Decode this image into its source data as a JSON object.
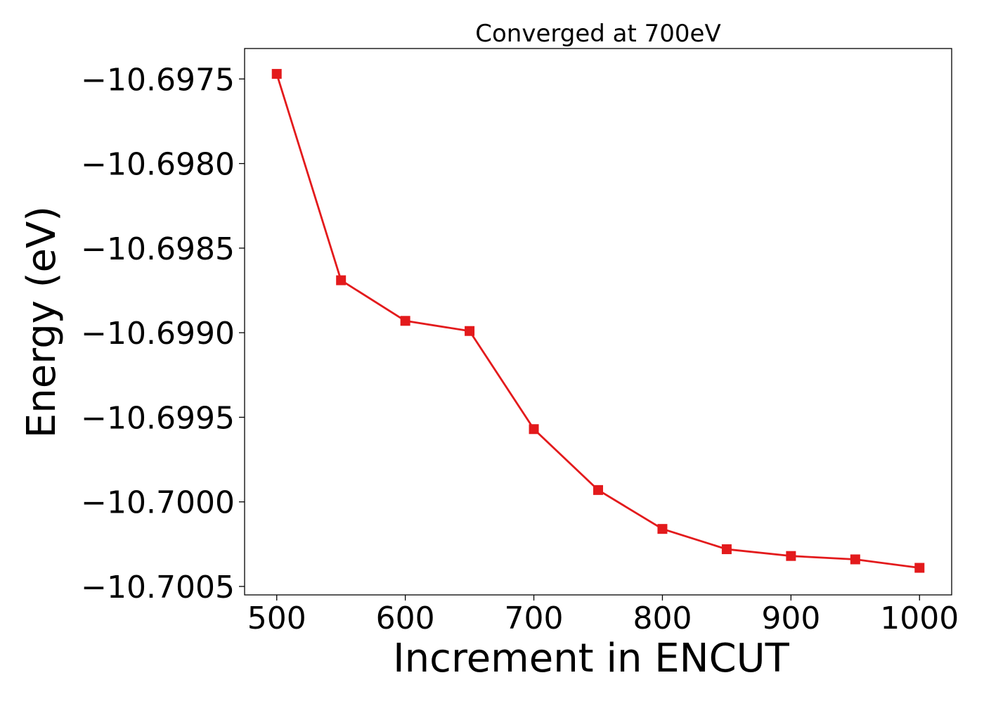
{
  "chart_data": {
    "type": "line",
    "title": "Converged at 700eV",
    "xlabel": "Increment in ENCUT",
    "ylabel": "Energy (eV)",
    "x": [
      500,
      550,
      600,
      650,
      700,
      750,
      800,
      850,
      900,
      950,
      1000
    ],
    "series": [
      {
        "values": [
          -10.69747,
          -10.69869,
          -10.69893,
          -10.69899,
          -10.69957,
          -10.69993,
          -10.70016,
          -10.70028,
          -10.70032,
          -10.70034,
          -10.70039
        ],
        "color": "#e31a1c",
        "marker": "square"
      }
    ],
    "xlim": [
      475,
      1025
    ],
    "ylim": [
      -10.70055,
      -10.69732
    ],
    "xticks": [
      500,
      600,
      700,
      800,
      900,
      1000
    ],
    "xtick_labels": [
      "500",
      "600",
      "700",
      "800",
      "900",
      "1000"
    ],
    "yticks": [
      -10.6975,
      -10.698,
      -10.6985,
      -10.699,
      -10.6995,
      -10.7,
      -10.7005
    ],
    "ytick_labels": [
      "−10.6975",
      "−10.6980",
      "−10.6985",
      "−10.6990",
      "−10.6995",
      "−10.7000",
      "−10.7005"
    ],
    "grid": false,
    "legend": "none"
  }
}
